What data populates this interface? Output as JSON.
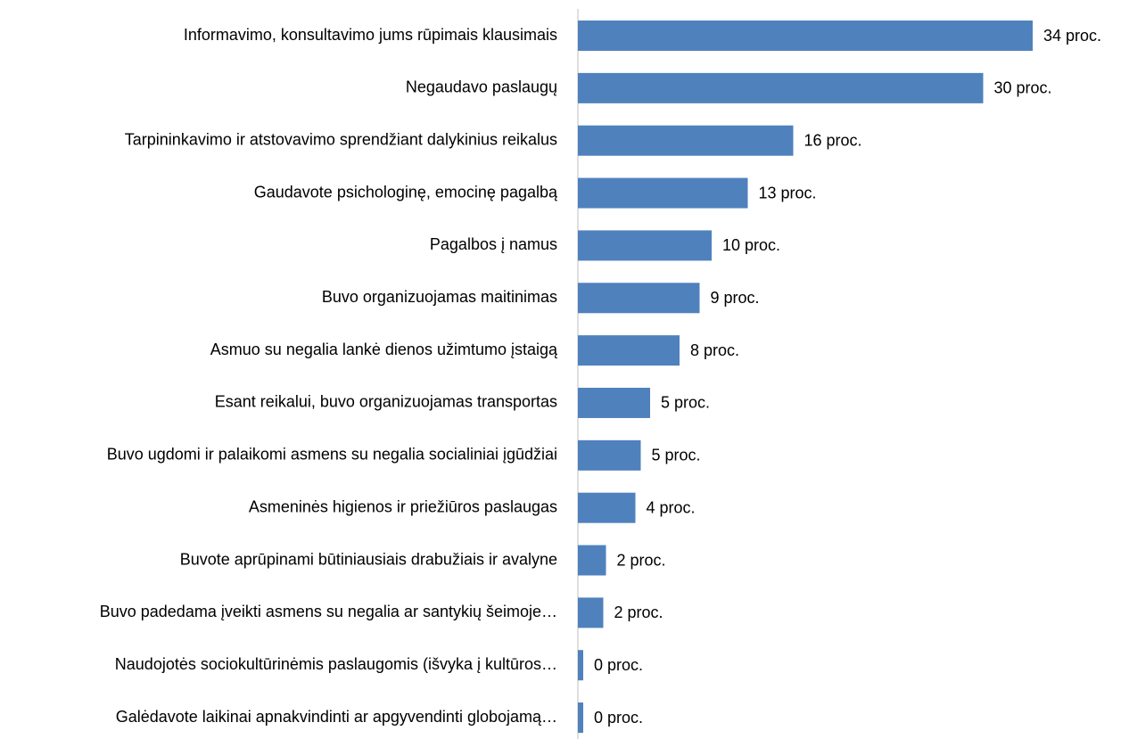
{
  "chart_data": {
    "type": "bar",
    "orientation": "horizontal",
    "categories": [
      "Informavimo, konsultavimo jums rūpimais klausimais",
      "Negaudavo paslaugų",
      "Tarpininkavimo ir atstovavimo sprendžiant dalykinius reikalus",
      "Gaudavote psichologinę, emocinę pagalbą",
      "Pagalbos į namus",
      "Buvo organizuojamas maitinimas",
      "Asmuo su negalia lankė dienos užimtumo įstaigą",
      "Esant reikalui, buvo organizuojamas transportas",
      "Buvo ugdomi ir palaikomi asmens su negalia socialiniai įgūdžiai",
      "Asmeninės higienos ir priežiūros paslaugas",
      "Buvote aprūpinami būtiniausiais drabužiais ir avalyne",
      "Buvo padedama įveikti asmens su negalia ar santykių šeimoje…",
      "Naudojotės sociokultūrinėmis paslaugomis (išvyka į kultūros…",
      "Galėdavote laikinai apnakvindinti ar apgyvendinti globojamą…"
    ],
    "values": [
      34,
      30.3,
      16.1,
      12.7,
      10,
      9.1,
      7.6,
      5.4,
      4.7,
      4.3,
      2.1,
      1.9,
      0.4,
      0.4
    ],
    "value_labels": [
      "34 proc.",
      "30 proc.",
      "16 proc.",
      "13 proc.",
      "10 proc.",
      "9 proc.",
      "8 proc.",
      "5 proc.",
      "5 proc.",
      "4 proc.",
      "2 proc.",
      "2 proc.",
      "0 proc.",
      "0 proc."
    ],
    "color": "#4f81bd",
    "xlim": [
      0,
      40
    ]
  }
}
